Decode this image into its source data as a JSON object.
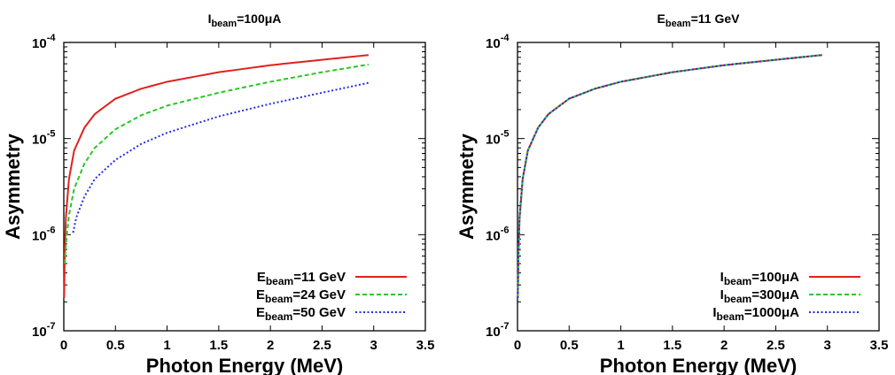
{
  "chart_data": [
    {
      "type": "line",
      "title": "I_beam=100μA",
      "title_main": "I",
      "title_sub": "beam",
      "title_rest": "=100μA",
      "xlabel": "Photon Energy (MeV)",
      "ylabel": "Asymmetry",
      "xlim": [
        0,
        3.5
      ],
      "ylim": [
        1e-07,
        0.0001
      ],
      "yscale": "log",
      "x_ticks": [
        "0",
        "0.5",
        "1",
        "1.5",
        "2",
        "2.5",
        "3",
        "3.5"
      ],
      "y_ticks": [
        {
          "base": "10",
          "exp": "-7"
        },
        {
          "base": "10",
          "exp": "-6"
        },
        {
          "base": "10",
          "exp": "-5"
        },
        {
          "base": "10",
          "exp": "-4"
        }
      ],
      "legend_position": "bottom-right",
      "series": [
        {
          "name": "E_beam=11 GeV",
          "label_main": "E",
          "label_sub": "beam",
          "label_rest": "=11 GeV",
          "color": "#e0211d",
          "dash": "solid",
          "x": [
            0.003,
            0.01,
            0.02,
            0.05,
            0.1,
            0.2,
            0.3,
            0.5,
            0.75,
            1.0,
            1.5,
            2.0,
            2.5,
            2.95
          ],
          "values": [
            2.2e-07,
            7e-07,
            1.5e-06,
            3.8e-06,
            7.5e-06,
            1.3e-05,
            1.8e-05,
            2.6e-05,
            3.3e-05,
            3.9e-05,
            4.9e-05,
            5.8e-05,
            6.6e-05,
            7.4e-05
          ]
        },
        {
          "name": "E_beam=24 GeV",
          "label_main": "E",
          "label_sub": "beam",
          "label_rest": "=24 GeV",
          "color": "#28c824",
          "dash": "dashed",
          "x": [
            0.01,
            0.02,
            0.05,
            0.1,
            0.2,
            0.3,
            0.5,
            0.75,
            1.0,
            1.5,
            2.0,
            2.5,
            2.95
          ],
          "values": [
            5e-07,
            8e-07,
            1.6e-06,
            3e-06,
            5.5e-06,
            8e-06,
            1.25e-05,
            1.75e-05,
            2.2e-05,
            3e-05,
            3.9e-05,
            4.9e-05,
            5.9e-05
          ]
        },
        {
          "name": "E_beam=50 GeV",
          "label_main": "E",
          "label_sub": "beam",
          "label_rest": "=50 GeV",
          "color": "#1f2fe0",
          "dash": "dotted",
          "x": [
            0.09,
            0.12,
            0.2,
            0.3,
            0.5,
            0.75,
            1.0,
            1.5,
            2.0,
            2.5,
            2.95
          ],
          "values": [
            1.05e-06,
            1.5e-06,
            2.5e-06,
            3.8e-06,
            6e-06,
            8.8e-06,
            1.15e-05,
            1.7e-05,
            2.3e-05,
            3e-05,
            3.8e-05
          ]
        }
      ]
    },
    {
      "type": "line",
      "title": "E_beam=11 GeV",
      "title_main": "E",
      "title_sub": "beam",
      "title_rest": "=11 GeV",
      "xlabel": "Photon Energy (MeV)",
      "ylabel": "Asymmetry",
      "xlim": [
        0,
        3.5
      ],
      "ylim": [
        1e-07,
        0.0001
      ],
      "yscale": "log",
      "x_ticks": [
        "0",
        "0.5",
        "1",
        "1.5",
        "2",
        "2.5",
        "3",
        "3.5"
      ],
      "y_ticks": [
        {
          "base": "10",
          "exp": "-7"
        },
        {
          "base": "10",
          "exp": "-6"
        },
        {
          "base": "10",
          "exp": "-5"
        },
        {
          "base": "10",
          "exp": "-4"
        }
      ],
      "legend_position": "bottom-right",
      "series": [
        {
          "name": "I_beam=100μA",
          "label_main": "I",
          "label_sub": "beam",
          "label_rest": "=100μA",
          "color": "#e0211d",
          "dash": "solid",
          "x": [
            0.003,
            0.01,
            0.02,
            0.05,
            0.1,
            0.2,
            0.3,
            0.5,
            0.75,
            1.0,
            1.5,
            2.0,
            2.5,
            2.95
          ],
          "values": [
            2.2e-07,
            7e-07,
            1.5e-06,
            3.8e-06,
            7.5e-06,
            1.3e-05,
            1.8e-05,
            2.6e-05,
            3.3e-05,
            3.9e-05,
            4.9e-05,
            5.8e-05,
            6.6e-05,
            7.4e-05
          ]
        },
        {
          "name": "I_beam=300μA",
          "label_main": "I",
          "label_sub": "beam",
          "label_rest": "=300μA",
          "color": "#28c824",
          "dash": "dashed",
          "x": [
            0.003,
            0.01,
            0.02,
            0.05,
            0.1,
            0.2,
            0.3,
            0.5,
            0.75,
            1.0,
            1.5,
            2.0,
            2.5,
            2.95
          ],
          "values": [
            2.2e-07,
            7e-07,
            1.5e-06,
            3.8e-06,
            7.5e-06,
            1.3e-05,
            1.8e-05,
            2.6e-05,
            3.3e-05,
            3.9e-05,
            4.9e-05,
            5.8e-05,
            6.6e-05,
            7.4e-05
          ]
        },
        {
          "name": "I_beam=1000μA",
          "label_main": "I",
          "label_sub": "beam",
          "label_rest": "=1000μA",
          "color": "#1f2fe0",
          "dash": "dotted",
          "x": [
            0.003,
            0.01,
            0.02,
            0.05,
            0.1,
            0.2,
            0.3,
            0.5,
            0.75,
            1.0,
            1.5,
            2.0,
            2.5,
            2.95
          ],
          "values": [
            2.2e-07,
            7e-07,
            1.5e-06,
            3.8e-06,
            7.5e-06,
            1.3e-05,
            1.8e-05,
            2.6e-05,
            3.3e-05,
            3.9e-05,
            4.9e-05,
            5.8e-05,
            6.6e-05,
            7.4e-05
          ]
        }
      ]
    }
  ]
}
